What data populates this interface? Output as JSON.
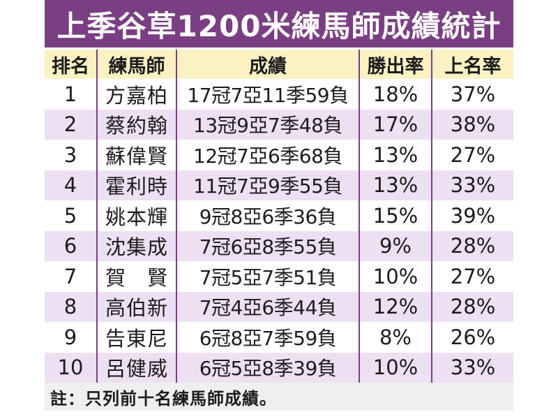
{
  "title": "上季谷草1200米練馬師成績統計",
  "headers": {
    "rank": "排名",
    "trainer": "練馬師",
    "record": "成績",
    "win_rate": "勝出率",
    "place_rate": "上名率"
  },
  "rows": [
    {
      "rank": "1",
      "trainer": "方嘉柏",
      "record": "17冠7亞11季59負",
      "win_rate": "18%",
      "place_rate": "37%"
    },
    {
      "rank": "2",
      "trainer": "蔡約翰",
      "record": "13冠9亞7季48負",
      "win_rate": "17%",
      "place_rate": "38%"
    },
    {
      "rank": "3",
      "trainer": "蘇偉賢",
      "record": "12冠7亞6季68負",
      "win_rate": "13%",
      "place_rate": "27%"
    },
    {
      "rank": "4",
      "trainer": "霍利時",
      "record": "11冠7亞9季55負",
      "win_rate": "13%",
      "place_rate": "33%"
    },
    {
      "rank": "5",
      "trainer": "姚本輝",
      "record": "9冠8亞6季36負",
      "win_rate": "15%",
      "place_rate": "39%"
    },
    {
      "rank": "6",
      "trainer": "沈集成",
      "record": "7冠6亞8季55負",
      "win_rate": "9%",
      "place_rate": "28%"
    },
    {
      "rank": "7",
      "trainer": "賀　賢",
      "record": "7冠5亞7季51負",
      "win_rate": "10%",
      "place_rate": "27%"
    },
    {
      "rank": "8",
      "trainer": "高伯新",
      "record": "7冠4亞6季44負",
      "win_rate": "12%",
      "place_rate": "28%"
    },
    {
      "rank": "9",
      "trainer": "告東尼",
      "record": "6冠8亞7季59負",
      "win_rate": "8%",
      "place_rate": "26%"
    },
    {
      "rank": "10",
      "trainer": "呂健威",
      "record": "6冠5亞8季39負",
      "win_rate": "10%",
      "place_rate": "33%"
    }
  ],
  "note": "註：只列前十名練馬師成績。"
}
